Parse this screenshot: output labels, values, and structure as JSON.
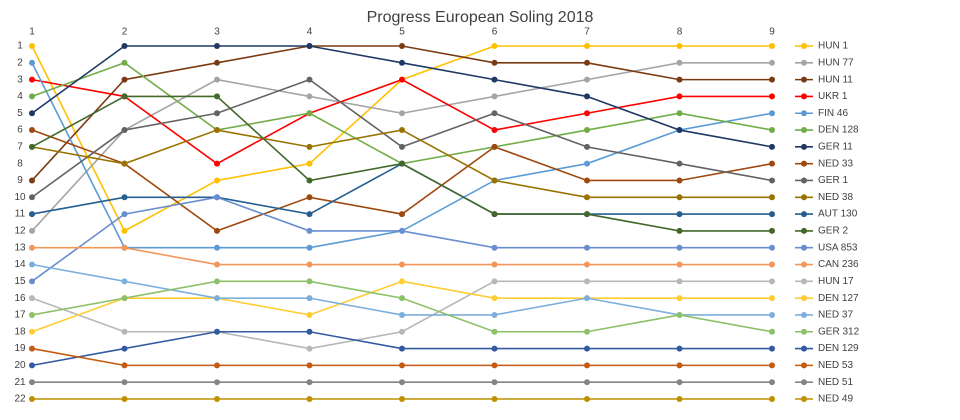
{
  "chart_data": {
    "type": "line",
    "title": "Progress European Soling 2018",
    "x": [
      1,
      2,
      3,
      4,
      5,
      6,
      7,
      8,
      9
    ],
    "xlim": [
      1,
      9
    ],
    "xticks": [
      1,
      2,
      3,
      4,
      5,
      6,
      7,
      8,
      9
    ],
    "ylim": [
      22,
      1
    ],
    "yticks": [
      1,
      2,
      3,
      4,
      5,
      6,
      7,
      8,
      9,
      10,
      11,
      12,
      13,
      14,
      15,
      16,
      17,
      18,
      19,
      20,
      21,
      22
    ],
    "legend": "right",
    "series": [
      {
        "name": "HUN 1",
        "color": "#FFC000",
        "values": [
          1,
          12,
          9,
          8,
          3,
          1,
          1,
          1,
          1
        ]
      },
      {
        "name": "HUN 77",
        "color": "#A5A5A5",
        "values": [
          12,
          6,
          3,
          4,
          5,
          4,
          3,
          2,
          2
        ]
      },
      {
        "name": "HUN 11",
        "color": "#7B3B12",
        "values": [
          9,
          3,
          2,
          1,
          1,
          2,
          2,
          3,
          3
        ]
      },
      {
        "name": "UKR 1",
        "color": "#FF0000",
        "values": [
          3,
          4,
          8,
          5,
          3,
          6,
          5,
          4,
          4
        ]
      },
      {
        "name": "FIN 46",
        "color": "#5B9BD5",
        "values": [
          2,
          13,
          13,
          13,
          12,
          9,
          8,
          6,
          5
        ]
      },
      {
        "name": "DEN 128",
        "color": "#70AD47",
        "values": [
          4,
          2,
          6,
          5,
          8,
          7,
          6,
          5,
          6
        ]
      },
      {
        "name": "GER 11",
        "color": "#1F3864",
        "values": [
          5,
          1,
          1,
          1,
          2,
          3,
          4,
          6,
          7
        ]
      },
      {
        "name": "NED 33",
        "color": "#9E480E",
        "values": [
          6,
          8,
          12,
          10,
          11,
          7,
          9,
          9,
          8
        ]
      },
      {
        "name": "GER 1",
        "color": "#636363",
        "values": [
          10,
          6,
          5,
          3,
          7,
          5,
          7,
          8,
          9
        ]
      },
      {
        "name": "NED 38",
        "color": "#997300",
        "values": [
          7,
          8,
          6,
          7,
          6,
          9,
          10,
          10,
          10
        ]
      },
      {
        "name": "AUT 130",
        "color": "#255E91",
        "values": [
          11,
          10,
          10,
          11,
          8,
          11,
          11,
          11,
          11
        ]
      },
      {
        "name": "GER 2",
        "color": "#43682B",
        "values": [
          7,
          4,
          4,
          9,
          8,
          11,
          11,
          12,
          12
        ]
      },
      {
        "name": "USA 853",
        "color": "#698ED0",
        "values": [
          15,
          11,
          10,
          12,
          12,
          13,
          13,
          13,
          13
        ]
      },
      {
        "name": "CAN 236",
        "color": "#F1975A",
        "values": [
          13,
          13,
          14,
          14,
          14,
          14,
          14,
          14,
          14
        ]
      },
      {
        "name": "HUN 17",
        "color": "#B7B7B7",
        "values": [
          16,
          18,
          18,
          19,
          18,
          15,
          15,
          15,
          15
        ]
      },
      {
        "name": "DEN 127",
        "color": "#FFCD33",
        "values": [
          18,
          16,
          16,
          17,
          15,
          16,
          16,
          16,
          16
        ]
      },
      {
        "name": "NED 37",
        "color": "#7CAFDD",
        "values": [
          14,
          15,
          16,
          16,
          17,
          17,
          16,
          17,
          17
        ]
      },
      {
        "name": "GER 312",
        "color": "#8CC168",
        "values": [
          17,
          16,
          15,
          15,
          16,
          18,
          18,
          17,
          18
        ]
      },
      {
        "name": "DEN 129",
        "color": "#335AA1",
        "values": [
          20,
          19,
          18,
          18,
          19,
          19,
          19,
          19,
          19
        ]
      },
      {
        "name": "NED 53",
        "color": "#C55A11",
        "values": [
          19,
          20,
          20,
          20,
          20,
          20,
          20,
          20,
          20
        ]
      },
      {
        "name": "NED 51",
        "color": "#848484",
        "values": [
          21,
          21,
          21,
          21,
          21,
          21,
          21,
          21,
          21
        ]
      },
      {
        "name": "NED 49",
        "color": "#BF9000",
        "values": [
          22,
          22,
          22,
          22,
          22,
          22,
          22,
          22,
          22
        ]
      }
    ]
  }
}
